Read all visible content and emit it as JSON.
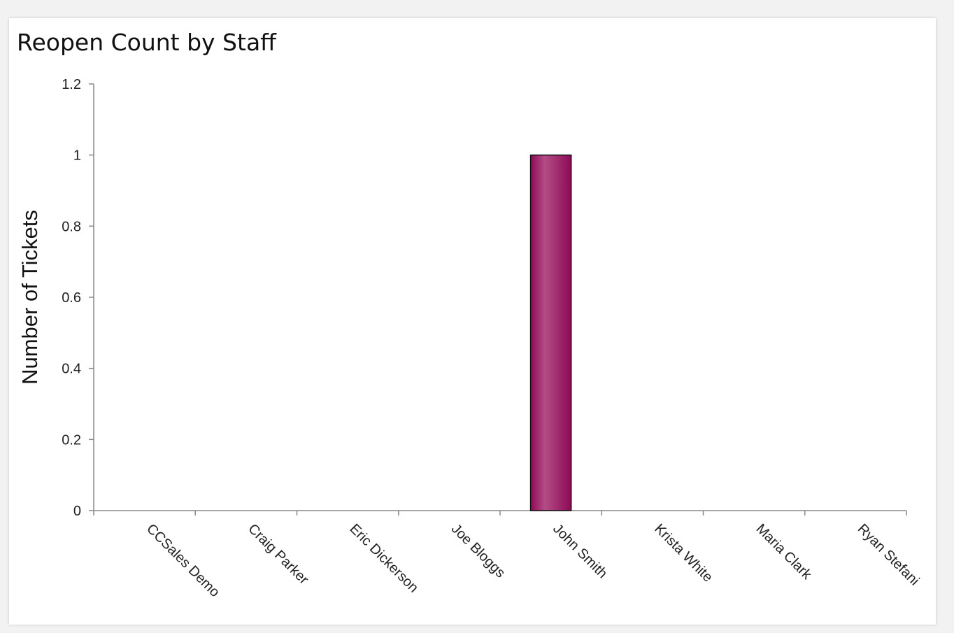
{
  "chart_data": {
    "type": "bar",
    "title": "Reopen Count by Staff",
    "xlabel": "",
    "ylabel": "Number of Tickets",
    "categories": [
      "CCSales Demo",
      "Craig Parker",
      "Eric Dickerson",
      "Joe Bloggs",
      "John Smith",
      "Krista White",
      "Maria Clark",
      "Ryan Stefani"
    ],
    "values": [
      0,
      0,
      0,
      0,
      1,
      0,
      0,
      0
    ],
    "ylim": [
      0,
      1.2
    ],
    "yticks": [
      "0",
      "0.2",
      "0.4",
      "0.6",
      "0.8",
      "1",
      "1.2"
    ],
    "grid": false,
    "legend": "none",
    "bar_color": "#8e0a55",
    "bar_highlight": "#b34d87"
  }
}
